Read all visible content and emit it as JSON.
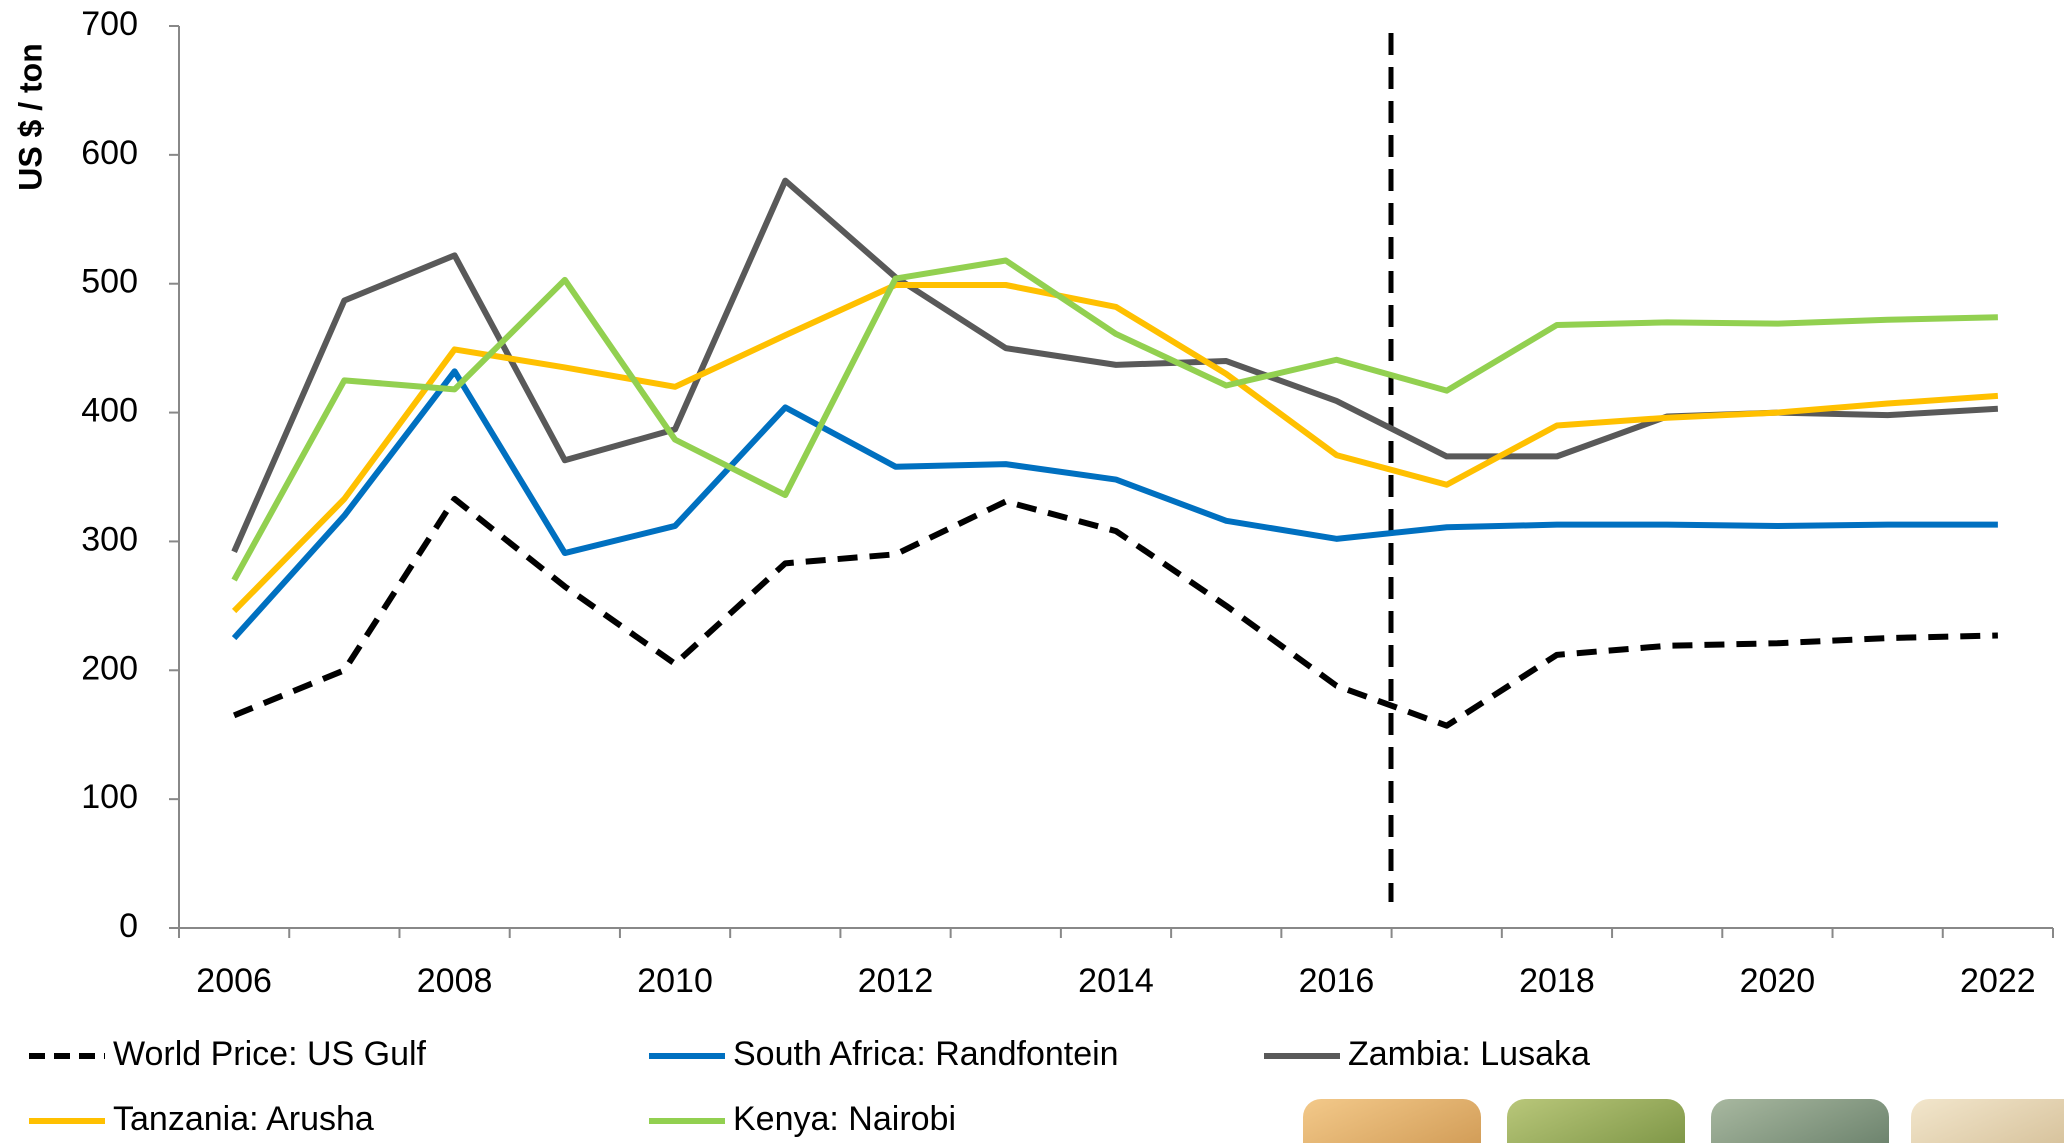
{
  "chart_data": {
    "type": "line",
    "y_label": "US $ / ton",
    "categories": [
      "2006",
      null,
      "2008",
      null,
      "2010",
      null,
      "2012",
      null,
      "2014",
      null,
      "2016",
      null,
      "2018",
      null,
      "2020",
      null,
      "2022"
    ],
    "series": [
      {
        "name": "World Price: US Gulf",
        "color": "#000000",
        "style": "dashed",
        "values": [
          165,
          200,
          333,
          265,
          205,
          283,
          290,
          331,
          308,
          250,
          188,
          157,
          212,
          219,
          221,
          225,
          227
        ]
      },
      {
        "name": "South Africa: Randfontein",
        "color": "#0070c0",
        "style": "solid",
        "values": [
          225,
          320,
          432,
          291,
          312,
          404,
          358,
          360,
          348,
          316,
          302,
          311,
          313,
          313,
          312,
          313,
          313
        ]
      },
      {
        "name": "Zambia: Lusaka",
        "color": "#595959",
        "style": "solid",
        "values": [
          292,
          487,
          522,
          363,
          387,
          580,
          505,
          450,
          437,
          440,
          409,
          366,
          366,
          397,
          400,
          398,
          403
        ]
      },
      {
        "name": "Tanzania: Arusha",
        "color": "#ffc000",
        "style": "solid",
        "values": [
          246,
          333,
          449,
          435,
          420,
          460,
          499,
          499,
          482,
          430,
          367,
          344,
          390,
          396,
          400,
          407,
          413
        ]
      },
      {
        "name": "Kenya: Nairobi",
        "color": "#92d050",
        "style": "solid",
        "values": [
          270,
          425,
          418,
          503,
          379,
          336,
          504,
          518,
          461,
          421,
          441,
          417,
          468,
          470,
          469,
          472,
          474
        ]
      }
    ],
    "ylim": [
      0,
      700
    ],
    "yticks": [
      0,
      100,
      200,
      300,
      400,
      500,
      600,
      700
    ],
    "grid": false
  }
}
